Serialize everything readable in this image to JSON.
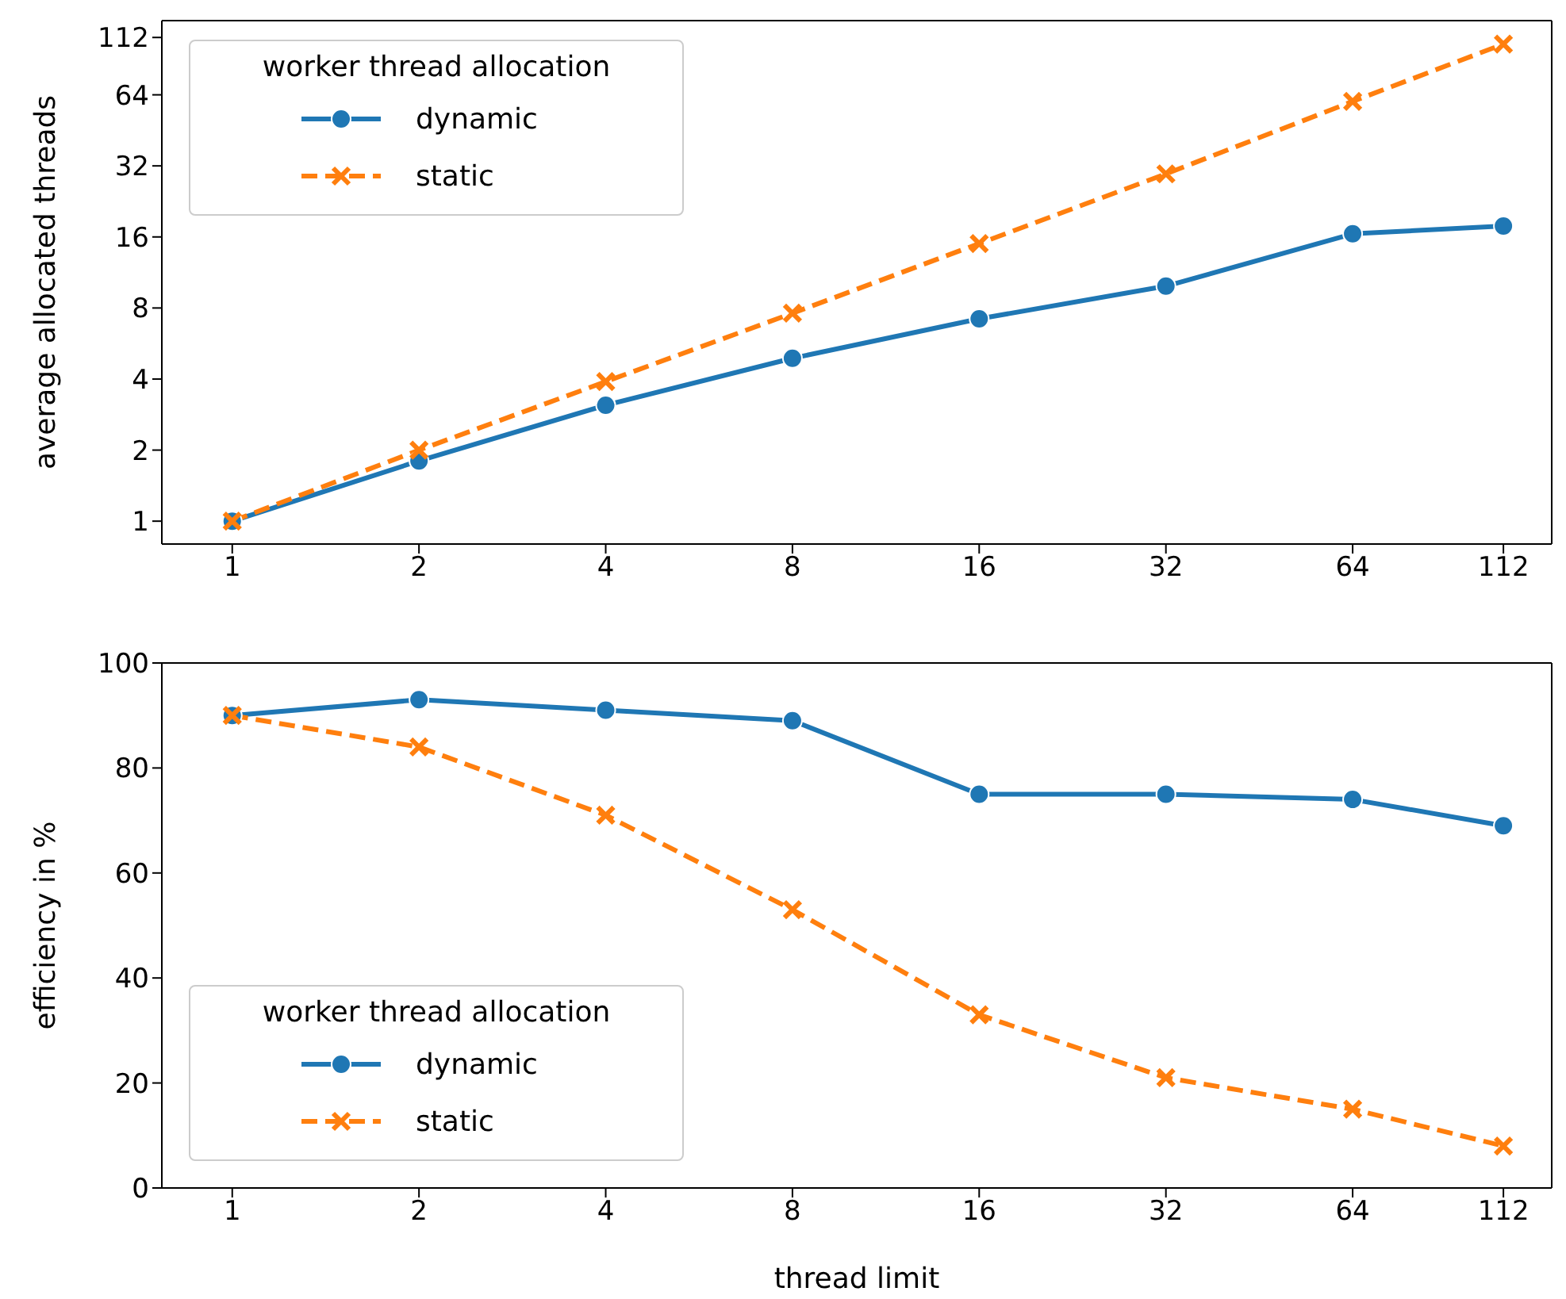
{
  "chart_data": [
    {
      "type": "line",
      "ylabel": "average allocated threads",
      "legend_title": "worker thread allocation",
      "x": [
        1,
        2,
        4,
        8,
        16,
        32,
        64,
        112
      ],
      "xlim": [
        0.77,
        134
      ],
      "xticks": [
        1,
        2,
        4,
        8,
        16,
        32,
        64,
        112
      ],
      "ylim": [
        0.8,
        132
      ],
      "yticks": [
        1,
        2,
        4,
        8,
        16,
        32,
        64,
        112
      ],
      "log": "xy",
      "grid": false,
      "legend": "top left",
      "series": [
        {
          "name": "dynamic",
          "color": "#1f77b4",
          "marker": "circle",
          "line_style": "solid",
          "values": [
            1,
            1.8,
            3.1,
            4.9,
            7.2,
            9.9,
            16.5,
            17.8
          ]
        },
        {
          "name": "static",
          "color": "#ff7f0e",
          "marker": "cross",
          "line_style": "dashed",
          "values": [
            1,
            2,
            3.9,
            7.6,
            15,
            29.6,
            60,
            105
          ]
        }
      ]
    },
    {
      "type": "line",
      "xlabel": "thread limit",
      "ylabel": "efficiency in %",
      "legend_title": "worker thread allocation",
      "x": [
        1,
        2,
        4,
        8,
        16,
        32,
        64,
        112
      ],
      "xlim": [
        0.77,
        134
      ],
      "xticks": [
        1,
        2,
        4,
        8,
        16,
        32,
        64,
        112
      ],
      "ylim": [
        0,
        100
      ],
      "yticks": [
        0,
        20,
        40,
        60,
        80,
        100
      ],
      "log": "x",
      "grid": false,
      "legend": "bottom left",
      "series": [
        {
          "name": "dynamic",
          "color": "#1f77b4",
          "marker": "circle",
          "line_style": "solid",
          "values": [
            90,
            93,
            91,
            89,
            75,
            75,
            74,
            69
          ]
        },
        {
          "name": "static",
          "color": "#ff7f0e",
          "marker": "cross",
          "line_style": "dashed",
          "values": [
            90,
            84,
            71,
            53,
            33,
            21,
            15,
            8
          ]
        }
      ]
    }
  ]
}
